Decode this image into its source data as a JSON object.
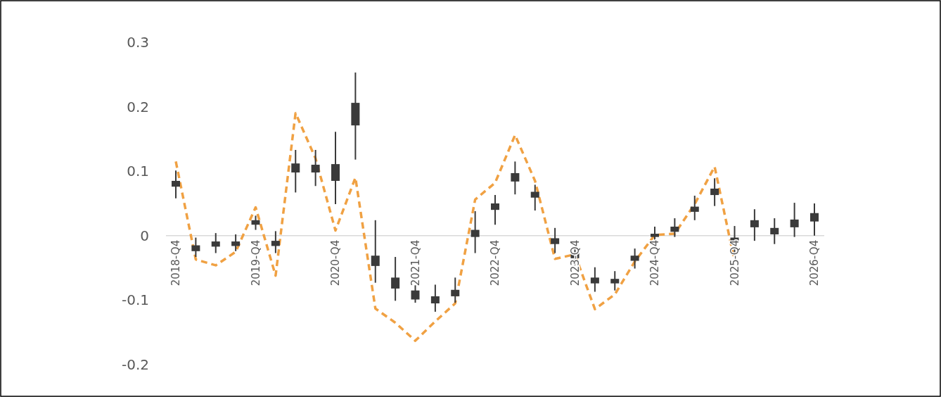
{
  "chart_data": {
    "type": "candlestick",
    "categories": [
      "2018-Q4",
      null,
      null,
      null,
      "2019-Q4",
      null,
      null,
      null,
      "2020-Q4",
      null,
      null,
      null,
      "2021-Q4",
      null,
      null,
      null,
      "2022-Q4",
      null,
      null,
      null,
      "2023-Q4",
      null,
      null,
      null,
      "2024-Q4",
      null,
      null,
      null,
      "2025-Q4",
      null,
      null,
      null,
      "2026-Q4"
    ],
    "ylim": [
      -0.2,
      0.3
    ],
    "yticks": [
      -0.2,
      -0.1,
      0,
      0.1,
      0.2,
      0.3
    ],
    "grid": false,
    "marker": "none",
    "series": [
      {
        "type": "candlestick",
        "color": "#3a3a3a",
        "ohlc": [
          [
            0.076,
            0.101,
            0.058,
            0.085
          ],
          [
            -0.024,
            -0.003,
            -0.033,
            -0.015
          ],
          [
            -0.017,
            0.004,
            -0.027,
            -0.009
          ],
          [
            -0.016,
            0.002,
            -0.024,
            -0.009
          ],
          [
            0.017,
            0.031,
            0.009,
            0.024
          ],
          [
            -0.016,
            0.007,
            -0.027,
            -0.008
          ],
          [
            0.098,
            0.133,
            0.067,
            0.112
          ],
          [
            0.098,
            0.133,
            0.077,
            0.11
          ],
          [
            0.085,
            0.161,
            0.049,
            0.111
          ],
          [
            0.171,
            0.253,
            0.118,
            0.206
          ],
          [
            -0.047,
            0.024,
            -0.073,
            -0.031
          ],
          [
            -0.082,
            -0.033,
            -0.101,
            -0.065
          ],
          [
            -0.099,
            -0.077,
            -0.104,
            -0.085
          ],
          [
            -0.105,
            -0.076,
            -0.118,
            -0.094
          ],
          [
            -0.094,
            -0.065,
            -0.104,
            -0.084
          ],
          [
            -0.002,
            0.038,
            -0.027,
            0.009
          ],
          [
            0.04,
            0.063,
            0.017,
            0.05
          ],
          [
            0.084,
            0.115,
            0.064,
            0.097
          ],
          [
            0.059,
            0.079,
            0.039,
            0.068
          ],
          [
            -0.013,
            0.012,
            -0.027,
            -0.004
          ],
          [
            -0.035,
            -0.011,
            -0.046,
            -0.027
          ],
          [
            -0.074,
            -0.049,
            -0.087,
            -0.065
          ],
          [
            -0.074,
            -0.055,
            -0.085,
            -0.067
          ],
          [
            -0.039,
            -0.02,
            -0.051,
            -0.031
          ],
          [
            -0.002,
            0.014,
            -0.011,
            0.003
          ],
          [
            0.006,
            0.027,
            -0.002,
            0.014
          ],
          [
            0.037,
            0.062,
            0.024,
            0.045
          ],
          [
            0.063,
            0.089,
            0.046,
            0.073
          ],
          [
            -0.012,
            0.015,
            -0.027,
            -0.003
          ],
          [
            0.013,
            0.041,
            -0.008,
            0.024
          ],
          [
            0.002,
            0.027,
            -0.013,
            0.012
          ],
          [
            0.013,
            0.051,
            -0.002,
            0.025
          ],
          [
            0.022,
            0.05,
            0,
            0.035
          ]
        ]
      },
      {
        "type": "line",
        "color": "#f0a143",
        "line_style": "dashed",
        "values": [
          0.115,
          -0.037,
          -0.046,
          -0.025,
          0.044,
          -0.062,
          0.19,
          0.12,
          0.008,
          0.09,
          -0.113,
          -0.135,
          -0.163,
          -0.133,
          -0.105,
          0.056,
          0.082,
          0.156,
          0.085,
          -0.036,
          -0.029,
          -0.114,
          -0.091,
          -0.04,
          0.001,
          0.003,
          0.049,
          0.107,
          -0.04,
          null,
          null,
          null,
          null
        ]
      }
    ]
  }
}
